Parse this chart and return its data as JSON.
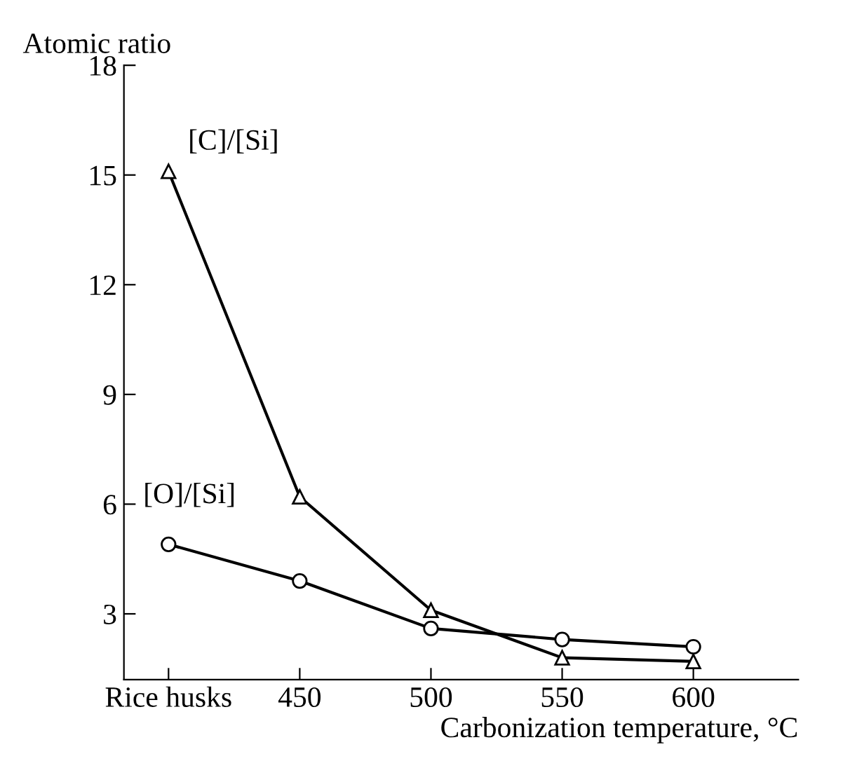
{
  "chart_data": {
    "type": "line",
    "xlabel": "Carbonization temperature, °C",
    "ylabel": "Atomic ratio",
    "categories": [
      "Rice husks",
      "450",
      "500",
      "550",
      "600"
    ],
    "ylim": [
      1.2,
      18
    ],
    "yticks": [
      3,
      6,
      9,
      12,
      15,
      18
    ],
    "grid": false,
    "legend": false,
    "line_style": "solid",
    "series": [
      {
        "name": "[C]/[Si]",
        "color": "#000000",
        "marker": "triangle",
        "values": [
          15.1,
          6.2,
          3.1,
          1.8,
          1.7
        ]
      },
      {
        "name": "[O]/[Si]",
        "color": "#000000",
        "marker": "circle",
        "values": [
          4.9,
          3.9,
          2.6,
          2.3,
          2.1
        ]
      }
    ]
  }
}
